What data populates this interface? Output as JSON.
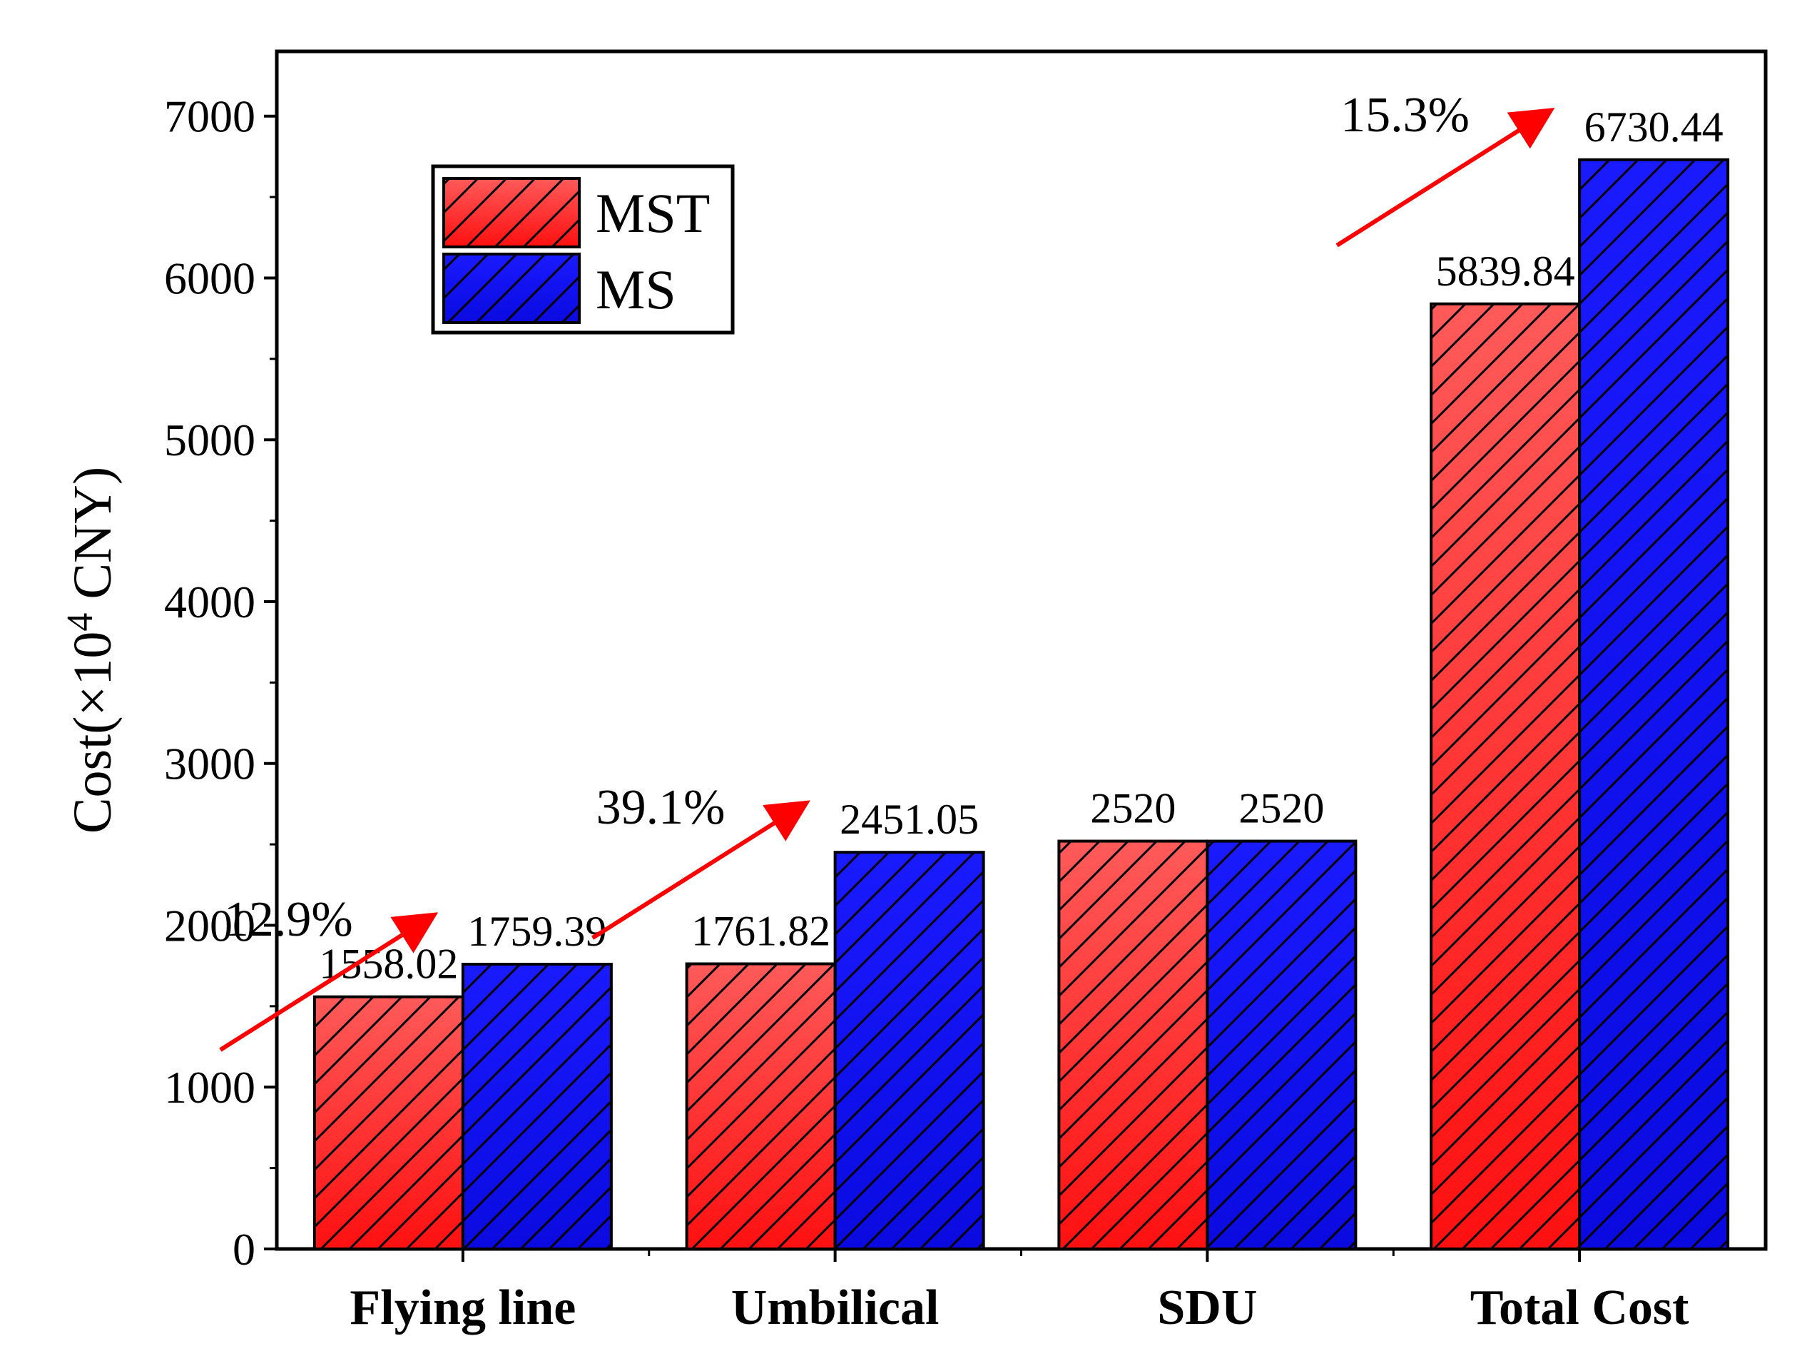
{
  "chart_data": {
    "type": "bar",
    "title": "",
    "xlabel": "",
    "ylabel": {
      "prefix": "Cost(×10",
      "superscript": "4",
      "suffix": " CNY)"
    },
    "ylim": [
      0,
      7400
    ],
    "yticks": [
      0,
      1000,
      2000,
      3000,
      4000,
      5000,
      6000,
      7000
    ],
    "categories": [
      "Flying line",
      "Umbilical",
      "SDU",
      "Total Cost"
    ],
    "series": [
      {
        "name": "MST",
        "color": "#ff2020",
        "values": [
          1558.02,
          1761.82,
          2520,
          5839.84
        ],
        "labels": [
          "1558.02",
          "1761.82",
          "2520",
          "5839.84"
        ]
      },
      {
        "name": "MS",
        "color": "#0a0aee",
        "values": [
          1759.39,
          2451.05,
          2520,
          6730.44
        ],
        "labels": [
          "1759.39",
          "2451.05",
          "2520",
          "6730.44"
        ]
      }
    ],
    "annotations": [
      {
        "category": "Flying line",
        "text": "12.9%"
      },
      {
        "category": "Umbilical",
        "text": "39.1%"
      },
      {
        "category": "Total Cost",
        "text": "15.3%"
      }
    ],
    "legend": {
      "placement": "top-left",
      "entries": [
        "MST",
        "MS"
      ]
    },
    "pattern": "diagonal-hatch",
    "grid": false
  }
}
